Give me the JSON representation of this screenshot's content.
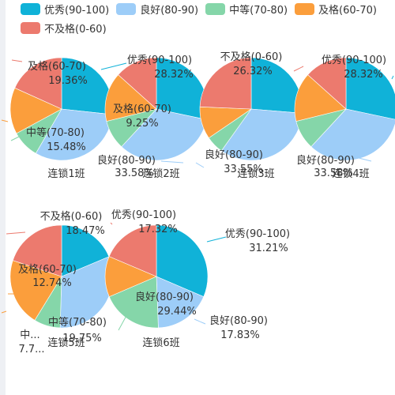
{
  "legend": [
    {
      "name": "优秀(90-100)",
      "color": "#10b2d8"
    },
    {
      "name": "良好(80-90)",
      "color": "#9dcdf8"
    },
    {
      "name": "中等(70-80)",
      "color": "#85d6a9"
    },
    {
      "name": "及格(60-70)",
      "color": "#fb9e3c"
    },
    {
      "name": "不及格(0-60)",
      "color": "#ec7a6e"
    }
  ],
  "chart_data": {
    "type": "pie",
    "categories": [
      "优秀(90-100)",
      "良好(80-90)",
      "中等(70-80)",
      "及格(60-70)",
      "不及格(0-60)"
    ],
    "pies": [
      {
        "title": "连锁1班",
        "values": [
          28.32,
          33.55,
          9.25,
          15.48,
          19.36
        ]
      },
      {
        "title": "连锁2班",
        "values": [
          28.32,
          33.58,
          9.25,
          15.48,
          13.37
        ]
      },
      {
        "title": "连锁3班",
        "values": [
          26.32,
          33.55,
          5.6,
          10.2,
          24.33
        ]
      },
      {
        "title": "连锁4班",
        "values": [
          28.32,
          33.58,
          9.25,
          15.48,
          13.37
        ]
      },
      {
        "title": "连锁5班",
        "values": [
          17.32,
          29.44,
          7.7,
          19.75,
          18.47
        ]
      },
      {
        "title": "连锁6班",
        "values": [
          31.21,
          17.83,
          19.0,
          12.74,
          18.47
        ]
      }
    ],
    "visible_labels": [
      {
        "text": "及格(60-70)",
        "value": "19.36%"
      },
      {
        "text": "中等(70-80)",
        "value": "15.48%"
      },
      {
        "text": "优秀(90-100)",
        "value": "28.32%"
      },
      {
        "text": "及格(60-70)",
        "value": "9.25%"
      },
      {
        "text": "良好(80-90)",
        "value": "33.58%"
      },
      {
        "text": "不及格(0-60)",
        "value": "26.32%"
      },
      {
        "text": "良好(80-90)",
        "value": "33.55%"
      },
      {
        "text": "优秀(90-100)",
        "value": "28.32%"
      },
      {
        "text": "良好(80-90)",
        "value": "33.58%"
      },
      {
        "text": "不及格(0-60)",
        "value": "18.47%"
      },
      {
        "text": "优秀(90-100)",
        "value": "17.32%"
      },
      {
        "text": "优秀(90-100)",
        "value": "31.21%"
      },
      {
        "text": "及格(60-70)",
        "value": "12.74%"
      },
      {
        "text": "良好(80-90)",
        "value": "29.44%"
      },
      {
        "text": "良好(80-90)",
        "value": "17.83%"
      },
      {
        "text": "中等(70-80)",
        "value": "19.75%"
      },
      {
        "text": "中...",
        "value": "7.7..."
      }
    ]
  }
}
